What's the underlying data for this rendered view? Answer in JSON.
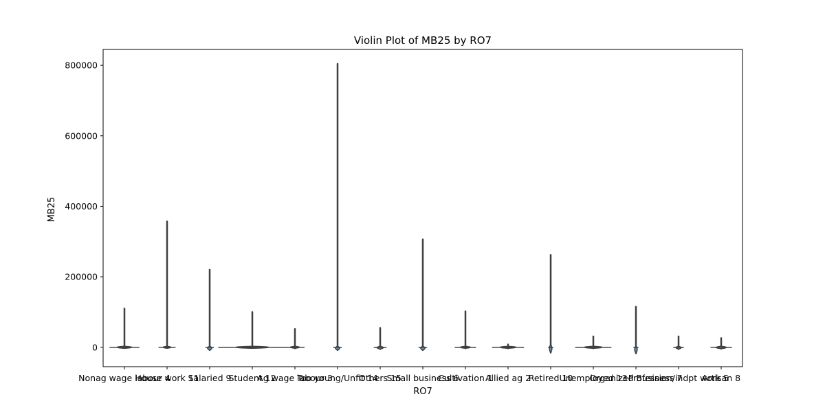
{
  "chart_data": {
    "type": "violin",
    "title": "Violin Plot of MB25 by RO7",
    "xlabel": "RO7",
    "ylabel": "MB25",
    "ylim": [
      -55000,
      845000
    ],
    "yticks": [
      0,
      200000,
      400000,
      600000,
      800000
    ],
    "ytick_labels": [
      "0",
      "200000",
      "400000",
      "600000",
      "800000"
    ],
    "grid": false,
    "colors": {
      "violin_fill": "#5d8fb8",
      "violin_edge": "#3f3f3f",
      "axis": "#000000"
    },
    "categories": [
      "Nonag wage labour 4",
      "House work 11",
      "Salaried 9",
      "Student 12",
      "Ag wage labour 3",
      "Too young/Unfit 14",
      "Others 15",
      "Small business 6",
      "Cultivation 1",
      "Allied ag 2",
      "Retired 10",
      "Unemployed 13",
      "Organized Business 7",
      "Profession/indpt work 5",
      "Artisan 8"
    ],
    "violins": [
      {
        "max": 110000,
        "min": 0,
        "width": 0.7,
        "bulge": 0
      },
      {
        "max": 357000,
        "min": 0,
        "width": 0.4,
        "bulge": 0
      },
      {
        "max": 220000,
        "min": -8000,
        "width": 0.2,
        "bulge": 3000
      },
      {
        "max": 100000,
        "min": 0,
        "width": 1.6,
        "bulge": 0
      },
      {
        "max": 52000,
        "min": -3000,
        "width": 0.45,
        "bulge": 0
      },
      {
        "max": 804000,
        "min": -8000,
        "width": 0.2,
        "bulge": 3000
      },
      {
        "max": 55000,
        "min": -5000,
        "width": 0.3,
        "bulge": 0
      },
      {
        "max": 306000,
        "min": -8000,
        "width": 0.2,
        "bulge": 3000
      },
      {
        "max": 102000,
        "min": -3000,
        "width": 0.5,
        "bulge": 0
      },
      {
        "max": 8000,
        "min": -3000,
        "width": 0.75,
        "bulge": 3000
      },
      {
        "max": 262000,
        "min": -15000,
        "width": 0.12,
        "bulge": 8000
      },
      {
        "max": 31000,
        "min": -3000,
        "width": 0.85,
        "bulge": 0
      },
      {
        "max": 115000,
        "min": -17000,
        "width": 0.12,
        "bulge": 4000
      },
      {
        "max": 31000,
        "min": -5000,
        "width": 0.25,
        "bulge": 0
      },
      {
        "max": 26000,
        "min": -4000,
        "width": 0.5,
        "bulge": 0
      }
    ]
  }
}
